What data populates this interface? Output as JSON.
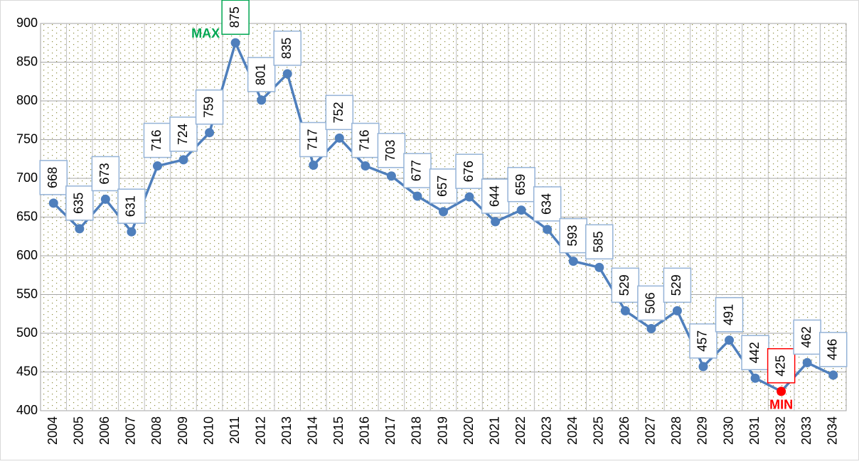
{
  "chart_data": {
    "type": "line",
    "categories": [
      "2004",
      "2005",
      "2006",
      "2007",
      "2008",
      "2009",
      "2010",
      "2011",
      "2012",
      "2013",
      "2014",
      "2015",
      "2016",
      "2017",
      "2018",
      "2019",
      "2020",
      "2021",
      "2022",
      "2023",
      "2024",
      "2025",
      "2026",
      "2027",
      "2028",
      "2029",
      "2030",
      "2031",
      "2032",
      "2033",
      "2034"
    ],
    "values": [
      668,
      635,
      673,
      631,
      716,
      724,
      759,
      875,
      801,
      835,
      717,
      752,
      716,
      703,
      677,
      657,
      676,
      644,
      659,
      634,
      593,
      585,
      529,
      506,
      529,
      457,
      491,
      442,
      425,
      462,
      446
    ],
    "color": "#4f7fbc",
    "ylim": [
      400,
      900
    ],
    "yticks": [
      400,
      450,
      500,
      550,
      600,
      650,
      700,
      750,
      800,
      850,
      900
    ],
    "grid": true,
    "annotations": [
      {
        "text": "MAX",
        "category": "2011",
        "color": "#00a651"
      },
      {
        "text": "MIN",
        "category": "2032",
        "color": "#ff0000"
      }
    ]
  }
}
